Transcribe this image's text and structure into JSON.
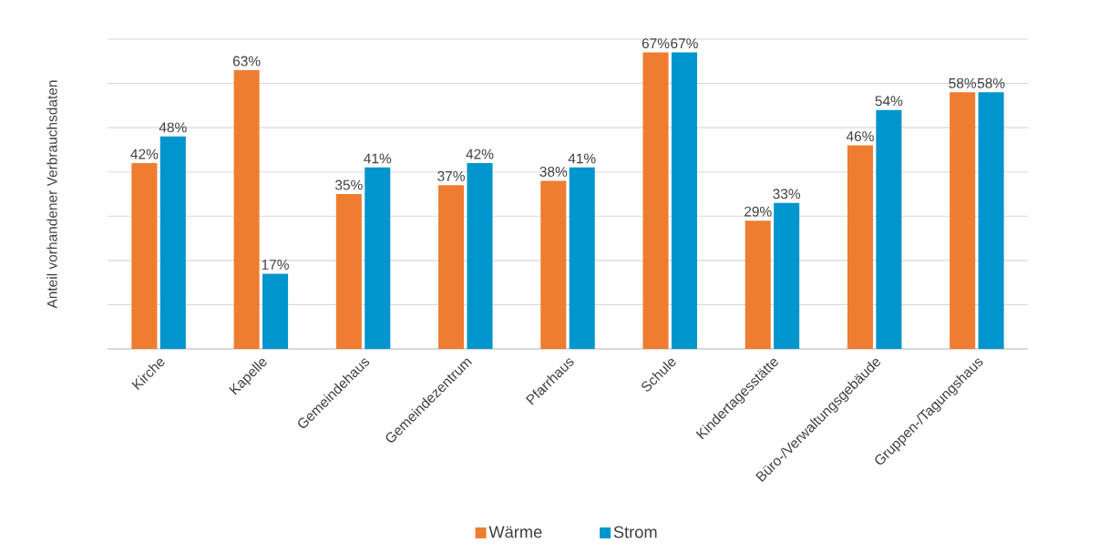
{
  "chart_data": {
    "type": "bar",
    "ylabel": "Anteil vorhandener Verbrauchsdaten",
    "categories": [
      "Kirche",
      "Kapelle",
      "Gemeindehaus",
      "Gemeindezentrum",
      "Pfarrhaus",
      "Schule",
      "Kindertagesstätte",
      "Büro-/Verwaltungsgebäude",
      "Gruppen-/Tagungshaus"
    ],
    "series": [
      {
        "name": "Wärme",
        "color": "#ee7d31",
        "values": [
          42,
          63,
          35,
          37,
          38,
          67,
          29,
          46,
          58
        ],
        "value_labels": [
          "42%",
          "63%",
          "35%",
          "37%",
          "38%",
          "67%",
          "29%",
          "46%",
          "58%"
        ]
      },
      {
        "name": "Strom",
        "color": "#0095cc",
        "values": [
          48,
          17,
          41,
          42,
          41,
          67,
          33,
          54,
          58
        ],
        "value_labels": [
          "48%",
          "17%",
          "41%",
          "42%",
          "41%",
          "67%",
          "33%",
          "54%",
          "58%"
        ]
      }
    ],
    "ylim": [
      0,
      70
    ],
    "yticks": [
      {
        "value": 0,
        "label": null
      },
      {
        "value": 10,
        "label": null
      },
      {
        "value": 20,
        "label": null
      },
      {
        "value": 30,
        "label": null
      },
      {
        "value": 40,
        "label": null
      },
      {
        "value": 50,
        "label": null
      },
      {
        "value": 60,
        "label": null
      },
      {
        "value": 70,
        "label": null
      }
    ],
    "tick_labels": "x",
    "grid": "y",
    "legend": "bottom"
  }
}
